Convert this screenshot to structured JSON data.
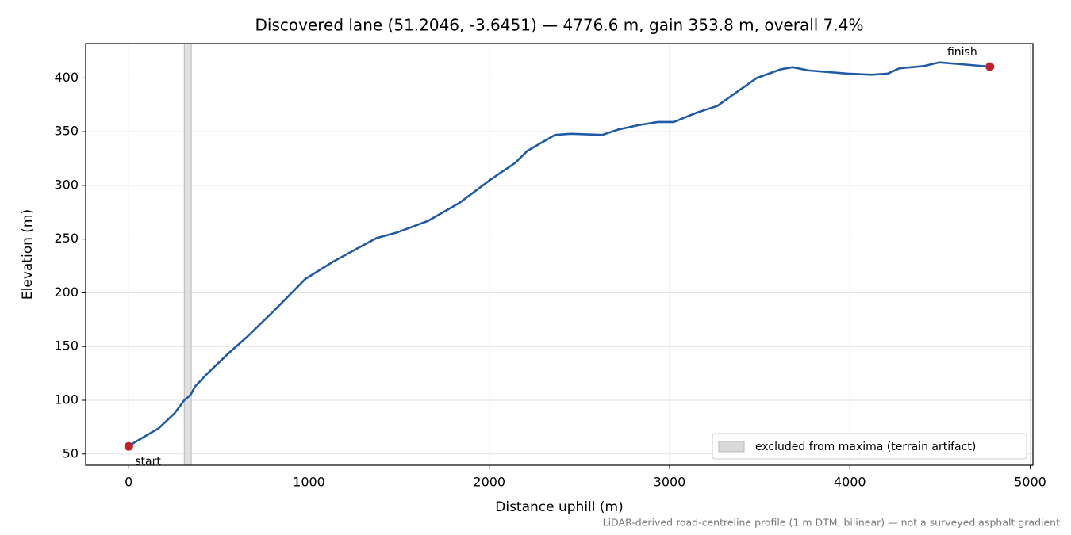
{
  "chart_data": {
    "type": "line",
    "title": "Discovered lane (51.2046, -3.6451) — 4776.6 m, gain 353.8 m, overall 7.4%",
    "xlabel": "Distance uphill (m)",
    "ylabel": "Elevation (m)",
    "footnote": "LiDAR-derived road-centreline profile (1 m DTM, bilinear) — not a surveyed asphalt gradient",
    "x": [
      0,
      35,
      167,
      255,
      308,
      343,
      369,
      431,
      562,
      650,
      804,
      980,
      1134,
      1265,
      1375,
      1485,
      1661,
      1837,
      2012,
      2144,
      2210,
      2364,
      2452,
      2627,
      2715,
      2825,
      2935,
      3023,
      3155,
      3265,
      3374,
      3484,
      3616,
      3682,
      3770,
      3989,
      4121,
      4209,
      4275,
      4407,
      4495,
      4605,
      4776.6
    ],
    "values": [
      57,
      61,
      74,
      88,
      100,
      105,
      113,
      124,
      145,
      158,
      183,
      213,
      229,
      241,
      251,
      256,
      267,
      284,
      306,
      321,
      332,
      347,
      348,
      347,
      352,
      356,
      359,
      359,
      368,
      374,
      387,
      400,
      408,
      410,
      407,
      404,
      403,
      404,
      409,
      411,
      414.5,
      413,
      410.5
    ],
    "color": "#1f5aa6",
    "marker_color": "#c0202a",
    "start_label": "start",
    "finish_label": "finish",
    "excluded": {
      "label": "excluded from maxima (terrain artifact)",
      "range": [
        308,
        347
      ],
      "color": "#d9d9d9"
    },
    "legend": "lower right",
    "xlim": [
      -238.8,
      5015.4
    ],
    "ylim": [
      39.5,
      432
    ],
    "xticks": [
      0,
      1000,
      2000,
      3000,
      4000,
      5000
    ],
    "yticks": [
      50,
      100,
      150,
      200,
      250,
      300,
      350,
      400
    ],
    "grid": true
  }
}
